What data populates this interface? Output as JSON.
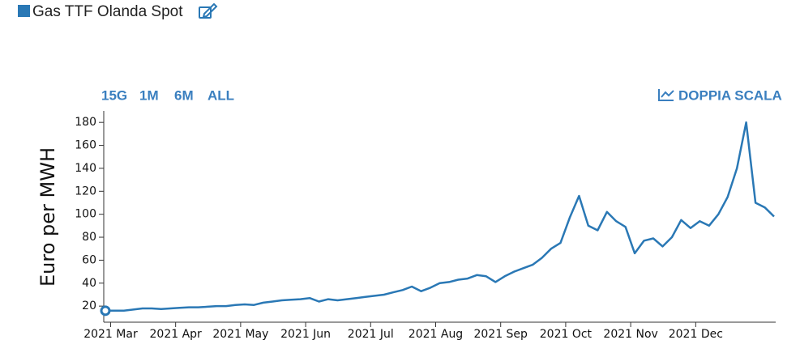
{
  "chart_data": {
    "type": "line",
    "series": [
      {
        "name": "Gas TTF Olanda Spot",
        "color": "#2a78b5",
        "values": [
          16,
          16,
          16,
          17,
          18,
          18,
          17.5,
          18,
          18.5,
          19,
          19,
          19.5,
          20,
          20,
          21,
          21.5,
          21,
          23,
          24,
          25,
          25.5,
          26,
          27,
          24,
          26,
          25,
          26,
          27,
          28,
          29,
          30,
          32,
          34,
          37,
          33,
          36,
          40,
          41,
          43,
          44,
          47,
          46,
          41,
          46,
          50,
          53,
          56,
          62,
          70,
          75,
          97,
          116,
          90,
          86,
          102,
          94,
          89,
          66,
          77,
          79,
          72,
          80,
          95,
          88,
          94,
          90,
          100,
          115,
          140,
          180,
          110,
          106,
          98
        ]
      }
    ],
    "categories": [
      null,
      "2021 Mar",
      null,
      null,
      null,
      null,
      null,
      null,
      "2021 Apr",
      null,
      null,
      null,
      null,
      null,
      null,
      "2021 May",
      null,
      null,
      null,
      null,
      null,
      null,
      "2021 Jun",
      null,
      null,
      null,
      null,
      null,
      null,
      "2021 Jul",
      null,
      null,
      null,
      null,
      null,
      null,
      "2021 Aug",
      null,
      null,
      null,
      null,
      null,
      null,
      "2021 Sep",
      null,
      null,
      null,
      null,
      null,
      null,
      "2021 Oct",
      null,
      null,
      null,
      null,
      null,
      null,
      "2021 Nov",
      null,
      null,
      null,
      null,
      null,
      null,
      "2021 Dec",
      null,
      null,
      null,
      null,
      null,
      null,
      null,
      null
    ],
    "ylabel": "Euro per MWH",
    "ylim": [
      6,
      190
    ],
    "yticks": [
      20,
      40,
      60,
      80,
      100,
      120,
      140,
      160,
      180
    ],
    "range_buttons": [
      "15G",
      "1M",
      "6M",
      "ALL"
    ],
    "dual_axis_button": "DOPPIA SCALA"
  }
}
